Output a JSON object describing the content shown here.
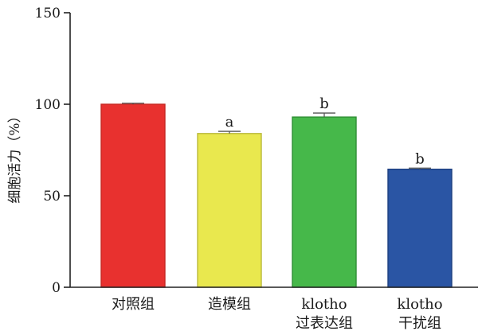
{
  "chart_data": {
    "type": "bar",
    "ylabel": "细胞活力（%）",
    "ylim": [
      0,
      150
    ],
    "yticks": [
      0,
      50,
      100,
      150
    ],
    "grid": false,
    "categories": [
      [
        "对照组"
      ],
      [
        "造模组"
      ],
      [
        "klotho",
        "过表达组"
      ],
      [
        "klotho",
        "干扰组"
      ]
    ],
    "values": [
      100,
      84,
      93,
      64.5
    ],
    "errors": [
      0.6,
      1.2,
      2.2,
      0.6
    ],
    "annotations": [
      "",
      "a",
      "b",
      "b"
    ],
    "colors": [
      "#e8312f",
      "#e9e84e",
      "#46b84a",
      "#2a55a4"
    ],
    "edge_colors": [
      "#c62823",
      "#b9b93a",
      "#2f8f35",
      "#1d3f80"
    ]
  }
}
